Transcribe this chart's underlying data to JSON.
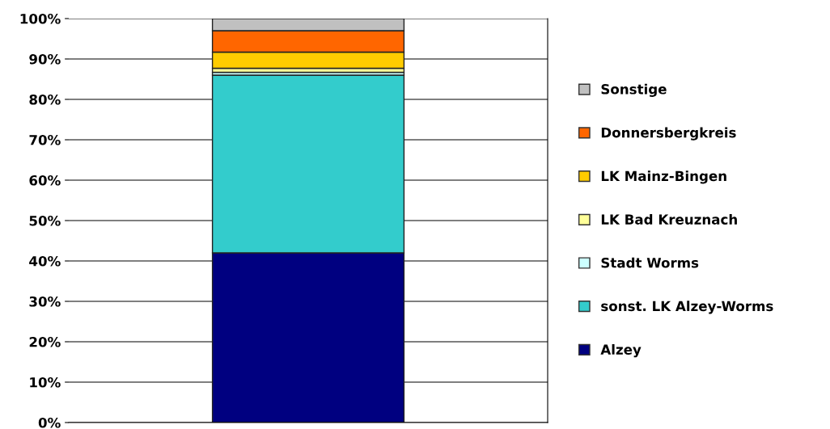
{
  "chart_data": {
    "type": "bar",
    "stacked": true,
    "categories": [
      null
    ],
    "series": [
      {
        "name": "Alzey",
        "color": "#000080",
        "values": [
          42
        ]
      },
      {
        "name": "sonst. LK Alzey-Worms",
        "color": "#33cccc",
        "values": [
          44
        ]
      },
      {
        "name": "Stadt Worms",
        "color": "#ccffff",
        "values": [
          0.7
        ]
      },
      {
        "name": "LK Bad Kreuznach",
        "color": "#ffff99",
        "values": [
          1
        ]
      },
      {
        "name": "LK Mainz-Bingen",
        "color": "#ffcc00",
        "values": [
          4
        ]
      },
      {
        "name": "Donnersbergkreis",
        "color": "#ff6600",
        "values": [
          5.3
        ]
      },
      {
        "name": "Sonstige",
        "color": "#c0c0c0",
        "values": [
          3
        ]
      }
    ],
    "ylim": [
      0,
      100
    ],
    "yticks": [
      {
        "value": 0,
        "label": "0%"
      },
      {
        "value": 10,
        "label": "10%"
      },
      {
        "value": 20,
        "label": "20%"
      },
      {
        "value": 30,
        "label": "30%"
      },
      {
        "value": 40,
        "label": "40%"
      },
      {
        "value": 50,
        "label": "50%"
      },
      {
        "value": 60,
        "label": "60%"
      },
      {
        "value": 70,
        "label": "70%"
      },
      {
        "value": 80,
        "label": "80%"
      },
      {
        "value": 90,
        "label": "90%"
      },
      {
        "value": 100,
        "label": "100%"
      }
    ],
    "grid": "y",
    "legend": "right"
  }
}
